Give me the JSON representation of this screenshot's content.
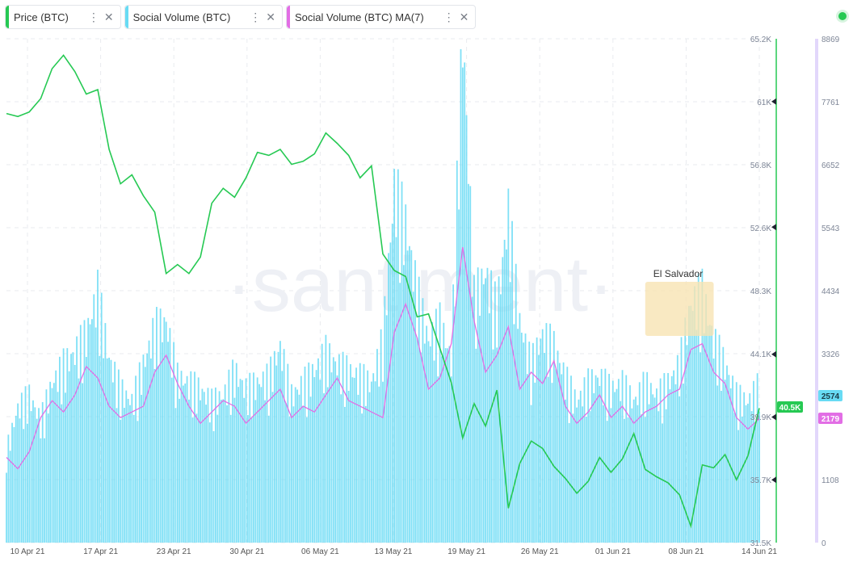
{
  "legend": {
    "items": [
      {
        "label": "Price (BTC)",
        "color": "#26c953"
      },
      {
        "label": "Social Volume (BTC)",
        "color": "#68dbf4"
      },
      {
        "label": "Social Volume (BTC) MA(7)",
        "color": "#e26ee5"
      }
    ],
    "menu_icon": "vertical-dots-icon",
    "close_icon": "close-icon"
  },
  "status_icon": "status-dot-icon",
  "watermark": "·santiment·",
  "chart_data": {
    "type": "bar",
    "x_ticks": [
      "10 Apr 21",
      "17 Apr 21",
      "23 Apr 21",
      "30 Apr 21",
      "06 May 21",
      "13 May 21",
      "19 May 21",
      "26 May 21",
      "01 Jun 21",
      "08 Jun 21",
      "14 Jun 21"
    ],
    "x_range": [
      "2021-04-09",
      "2021-06-14"
    ],
    "price_axis": {
      "ticks": [
        "65.2K",
        "61K",
        "56.8K",
        "52.6K",
        "48.3K",
        "44.1K",
        "39.9K",
        "35.7K",
        "31.5K"
      ],
      "range": [
        31500,
        65200
      ]
    },
    "volume_axis": {
      "ticks": [
        "8869",
        "7761",
        "6652",
        "5543",
        "4434",
        "3326",
        "2217",
        "1108",
        "0"
      ],
      "range": [
        0,
        8869
      ]
    },
    "series": [
      {
        "name": "Price (BTC)",
        "type": "line",
        "axis": "price",
        "color": "#26c953",
        "x": [
          "2021-04-09",
          "2021-04-10",
          "2021-04-11",
          "2021-04-12",
          "2021-04-13",
          "2021-04-14",
          "2021-04-15",
          "2021-04-16",
          "2021-04-17",
          "2021-04-18",
          "2021-04-19",
          "2021-04-20",
          "2021-04-21",
          "2021-04-22",
          "2021-04-23",
          "2021-04-24",
          "2021-04-25",
          "2021-04-26",
          "2021-04-27",
          "2021-04-28",
          "2021-04-29",
          "2021-04-30",
          "2021-05-01",
          "2021-05-02",
          "2021-05-03",
          "2021-05-04",
          "2021-05-05",
          "2021-05-06",
          "2021-05-07",
          "2021-05-08",
          "2021-05-09",
          "2021-05-10",
          "2021-05-11",
          "2021-05-12",
          "2021-05-13",
          "2021-05-14",
          "2021-05-15",
          "2021-05-16",
          "2021-05-17",
          "2021-05-18",
          "2021-05-19",
          "2021-05-20",
          "2021-05-21",
          "2021-05-22",
          "2021-05-23",
          "2021-05-24",
          "2021-05-25",
          "2021-05-26",
          "2021-05-27",
          "2021-05-28",
          "2021-05-29",
          "2021-05-30",
          "2021-05-31",
          "2021-06-01",
          "2021-06-02",
          "2021-06-03",
          "2021-06-04",
          "2021-06-05",
          "2021-06-06",
          "2021-06-07",
          "2021-06-08",
          "2021-06-09",
          "2021-06-10",
          "2021-06-11",
          "2021-06-12",
          "2021-06-13",
          "2021-06-14"
        ],
        "values": [
          60200,
          60000,
          60300,
          61200,
          63200,
          64100,
          63000,
          61500,
          61800,
          57800,
          55500,
          56100,
          54700,
          53600,
          49500,
          50100,
          49500,
          50600,
          54200,
          55200,
          54600,
          55900,
          57600,
          57400,
          57800,
          56800,
          57000,
          57500,
          58900,
          58200,
          57400,
          55900,
          56700,
          50800,
          49700,
          49300,
          46600,
          46800,
          44500,
          42200,
          38500,
          40800,
          39300,
          41700,
          33800,
          36800,
          38300,
          37800,
          36600,
          35800,
          34800,
          35600,
          37200,
          36200,
          37100,
          38800,
          36400,
          35900,
          35500,
          34700,
          32600,
          36700,
          36500,
          37400,
          35700,
          37300,
          40500
        ]
      },
      {
        "name": "Social Volume (BTC)",
        "type": "bar",
        "axis": "volume",
        "color": "#68dbf4",
        "values_note": "",
        "x": [
          "2021-04-09",
          "2021-04-10",
          "2021-04-11",
          "2021-04-12",
          "2021-04-13",
          "2021-04-14",
          "2021-04-15",
          "2021-04-16",
          "2021-04-17",
          "2021-04-18",
          "2021-04-19",
          "2021-04-20",
          "2021-04-21",
          "2021-04-22",
          "2021-04-23",
          "2021-04-24",
          "2021-04-25",
          "2021-04-26",
          "2021-04-27",
          "2021-04-28",
          "2021-04-29",
          "2021-04-30",
          "2021-05-01",
          "2021-05-02",
          "2021-05-03",
          "2021-05-04",
          "2021-05-05",
          "2021-05-06",
          "2021-05-07",
          "2021-05-08",
          "2021-05-09",
          "2021-05-10",
          "2021-05-11",
          "2021-05-12",
          "2021-05-13",
          "2021-05-14",
          "2021-05-15",
          "2021-05-16",
          "2021-05-17",
          "2021-05-18",
          "2021-05-19",
          "2021-05-20",
          "2021-05-21",
          "2021-05-22",
          "2021-05-23",
          "2021-05-24",
          "2021-05-25",
          "2021-05-26",
          "2021-05-27",
          "2021-05-28",
          "2021-05-29",
          "2021-05-30",
          "2021-05-31",
          "2021-06-01",
          "2021-06-02",
          "2021-06-03",
          "2021-06-04",
          "2021-06-05",
          "2021-06-06",
          "2021-06-07",
          "2021-06-08",
          "2021-06-09",
          "2021-06-10",
          "2021-06-11",
          "2021-06-12",
          "2021-06-13",
          "2021-06-14"
        ],
        "values": [
          1500,
          2200,
          2400,
          2000,
          2600,
          2900,
          3100,
          3400,
          4100,
          3000,
          2500,
          2300,
          2900,
          3500,
          3600,
          2700,
          2600,
          2500,
          2300,
          2400,
          2800,
          2500,
          2600,
          2700,
          3200,
          2400,
          2600,
          2800,
          3100,
          2900,
          2800,
          2700,
          2600,
          3300,
          5800,
          5200,
          4100,
          3300,
          3600,
          3000,
          8400,
          4000,
          4400,
          3800,
          5400,
          3600,
          2900,
          3400,
          3200,
          2700,
          2300,
          2600,
          2700,
          2500,
          2600,
          2300,
          2600,
          2400,
          2600,
          2900,
          3900,
          4100,
          3300,
          2900,
          2400,
          2300,
          2574
        ]
      },
      {
        "name": "Social Volume (BTC) MA(7)",
        "type": "line",
        "axis": "volume",
        "color": "#e26ee5",
        "x": [
          "2021-04-09",
          "2021-04-10",
          "2021-04-11",
          "2021-04-12",
          "2021-04-13",
          "2021-04-14",
          "2021-04-15",
          "2021-04-16",
          "2021-04-17",
          "2021-04-18",
          "2021-04-19",
          "2021-04-20",
          "2021-04-21",
          "2021-04-22",
          "2021-04-23",
          "2021-04-24",
          "2021-04-25",
          "2021-04-26",
          "2021-04-27",
          "2021-04-28",
          "2021-04-29",
          "2021-04-30",
          "2021-05-01",
          "2021-05-02",
          "2021-05-03",
          "2021-05-04",
          "2021-05-05",
          "2021-05-06",
          "2021-05-07",
          "2021-05-08",
          "2021-05-09",
          "2021-05-10",
          "2021-05-11",
          "2021-05-12",
          "2021-05-13",
          "2021-05-14",
          "2021-05-15",
          "2021-05-16",
          "2021-05-17",
          "2021-05-18",
          "2021-05-19",
          "2021-05-20",
          "2021-05-21",
          "2021-05-22",
          "2021-05-23",
          "2021-05-24",
          "2021-05-25",
          "2021-05-26",
          "2021-05-27",
          "2021-05-28",
          "2021-05-29",
          "2021-05-30",
          "2021-05-31",
          "2021-06-01",
          "2021-06-02",
          "2021-06-03",
          "2021-06-04",
          "2021-06-05",
          "2021-06-06",
          "2021-06-07",
          "2021-06-08",
          "2021-06-09",
          "2021-06-10",
          "2021-06-11",
          "2021-06-12",
          "2021-06-13",
          "2021-06-14"
        ],
        "values": [
          1500,
          1300,
          1600,
          2200,
          2500,
          2300,
          2600,
          3100,
          2900,
          2400,
          2200,
          2300,
          2400,
          3000,
          3300,
          2800,
          2400,
          2100,
          2300,
          2500,
          2400,
          2100,
          2300,
          2500,
          2700,
          2200,
          2400,
          2300,
          2600,
          2900,
          2500,
          2400,
          2300,
          2200,
          3700,
          4200,
          3600,
          2700,
          2900,
          3500,
          5200,
          3900,
          3000,
          3300,
          3800,
          2700,
          3000,
          2800,
          3200,
          2400,
          2100,
          2300,
          2600,
          2200,
          2400,
          2100,
          2300,
          2400,
          2600,
          2700,
          3400,
          3500,
          3000,
          2800,
          2200,
          2000,
          2179
        ]
      }
    ],
    "annotations": [
      {
        "label": "El Salvador",
        "x_start": "2021-06-04",
        "x_end": "2021-06-10"
      }
    ],
    "last_values": {
      "price": "40.5K",
      "volume": "2574",
      "volume_ma": "2179"
    },
    "grid": true
  }
}
